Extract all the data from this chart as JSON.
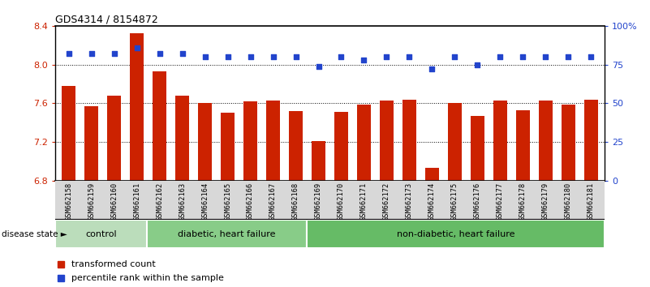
{
  "title": "GDS4314 / 8154872",
  "samples": [
    "GSM662158",
    "GSM662159",
    "GSM662160",
    "GSM662161",
    "GSM662162",
    "GSM662163",
    "GSM662164",
    "GSM662165",
    "GSM662166",
    "GSM662167",
    "GSM662168",
    "GSM662169",
    "GSM662170",
    "GSM662171",
    "GSM662172",
    "GSM662173",
    "GSM662174",
    "GSM662175",
    "GSM662176",
    "GSM662177",
    "GSM662178",
    "GSM662179",
    "GSM662180",
    "GSM662181"
  ],
  "bar_values": [
    7.78,
    7.57,
    7.68,
    8.32,
    7.93,
    7.68,
    7.6,
    7.5,
    7.62,
    7.63,
    7.52,
    7.21,
    7.51,
    7.59,
    7.63,
    7.64,
    6.93,
    7.6,
    7.47,
    7.63,
    7.53,
    7.63,
    7.59,
    7.64
  ],
  "blue_values": [
    82,
    82,
    82,
    86,
    82,
    82,
    80,
    80,
    80,
    80,
    80,
    74,
    80,
    78,
    80,
    80,
    72,
    80,
    75,
    80,
    80,
    80,
    80,
    80
  ],
  "bar_color": "#cc2200",
  "dot_color": "#2244cc",
  "ylim_left": [
    6.8,
    8.4
  ],
  "ylim_right": [
    0,
    100
  ],
  "yticks_left": [
    6.8,
    7.2,
    7.6,
    8.0,
    8.4
  ],
  "yticks_right": [
    0,
    25,
    50,
    75,
    100
  ],
  "ytick_labels_right": [
    "0",
    "25",
    "50",
    "75",
    "100%"
  ],
  "groups": [
    {
      "label": "control",
      "start": 0,
      "end": 4,
      "color": "#bbddbb"
    },
    {
      "label": "diabetic, heart failure",
      "start": 4,
      "end": 11,
      "color": "#88cc88"
    },
    {
      "label": "non-diabetic, heart failure",
      "start": 11,
      "end": 24,
      "color": "#66bb66"
    }
  ],
  "legend_bar_label": "transformed count",
  "legend_dot_label": "percentile rank within the sample",
  "disease_state_label": "disease state",
  "bg_color": "#d8d8d8",
  "plot_bg": "#ffffff",
  "ybase": 6.8
}
